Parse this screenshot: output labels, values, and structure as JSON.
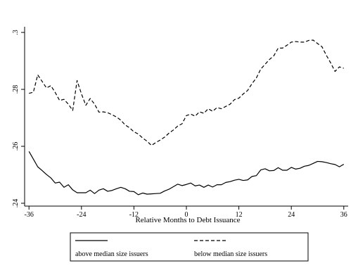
{
  "chart_data": {
    "type": "line",
    "title": "",
    "xlabel": "Relative Months to Debt Issuance",
    "ylabel": "",
    "xlim": [
      -37,
      37
    ],
    "ylim": [
      0.239,
      0.302
    ],
    "grid": false,
    "legend_placement": "bottom",
    "x_ticks": [
      -36,
      -24,
      -12,
      0,
      12,
      24,
      36
    ],
    "x_tick_labels": [
      "-36",
      "-24",
      "-12",
      "0",
      "12",
      "24",
      "36"
    ],
    "y_ticks": [
      0.24,
      0.26,
      0.28,
      0.3
    ],
    "y_tick_labels": [
      ".24",
      ".26",
      ".28",
      ".3"
    ],
    "x": [
      -36,
      -35,
      -34,
      -33,
      -32,
      -31,
      -30,
      -29,
      -28,
      -27,
      -26,
      -25,
      -24,
      -23,
      -22,
      -21,
      -20,
      -19,
      -18,
      -17,
      -16,
      -15,
      -14,
      -13,
      -12,
      -11,
      -10,
      -9,
      -8,
      -7,
      -6,
      -5,
      -4,
      -3,
      -2,
      -1,
      0,
      1,
      2,
      3,
      4,
      5,
      6,
      7,
      8,
      9,
      10,
      11,
      12,
      13,
      14,
      15,
      16,
      17,
      18,
      19,
      20,
      21,
      22,
      23,
      24,
      25,
      26,
      27,
      28,
      29,
      30,
      31,
      32,
      33,
      34,
      35,
      36
    ],
    "series": [
      {
        "name": "above median size issuers",
        "style": "solid",
        "values": [
          0.2582,
          0.2555,
          0.2528,
          0.2515,
          0.2501,
          0.2489,
          0.2471,
          0.2474,
          0.2456,
          0.2465,
          0.2447,
          0.2437,
          0.2437,
          0.2437,
          0.2446,
          0.2434,
          0.2446,
          0.2451,
          0.2442,
          0.2445,
          0.2451,
          0.2456,
          0.2451,
          0.2442,
          0.2441,
          0.243,
          0.2436,
          0.2432,
          0.2433,
          0.2434,
          0.2435,
          0.2443,
          0.2449,
          0.2458,
          0.2467,
          0.2462,
          0.2466,
          0.2471,
          0.2461,
          0.2464,
          0.2456,
          0.2464,
          0.2457,
          0.2465,
          0.2465,
          0.2473,
          0.2476,
          0.2481,
          0.2484,
          0.248,
          0.2482,
          0.2494,
          0.2497,
          0.2517,
          0.2521,
          0.2514,
          0.2515,
          0.2525,
          0.2516,
          0.2516,
          0.2526,
          0.252,
          0.2523,
          0.253,
          0.2533,
          0.254,
          0.2547,
          0.2546,
          0.2543,
          0.2539,
          0.2536,
          0.2528,
          0.2537
        ]
      },
      {
        "name": "below median size issuers",
        "style": "dashed",
        "values": [
          0.2786,
          0.279,
          0.2851,
          0.2828,
          0.2805,
          0.2813,
          0.2789,
          0.2761,
          0.2765,
          0.2748,
          0.2726,
          0.2831,
          0.2784,
          0.2744,
          0.2768,
          0.2748,
          0.272,
          0.2721,
          0.2718,
          0.2711,
          0.2703,
          0.2692,
          0.2675,
          0.2665,
          0.2651,
          0.2643,
          0.2629,
          0.2618,
          0.2603,
          0.2613,
          0.2622,
          0.2632,
          0.2646,
          0.2657,
          0.2671,
          0.2679,
          0.2708,
          0.2713,
          0.2706,
          0.2721,
          0.2716,
          0.2732,
          0.2723,
          0.2736,
          0.2732,
          0.274,
          0.2748,
          0.2764,
          0.2769,
          0.2784,
          0.2796,
          0.282,
          0.284,
          0.2871,
          0.2888,
          0.2905,
          0.2918,
          0.2945,
          0.2945,
          0.2955,
          0.2966,
          0.2968,
          0.2966,
          0.2966,
          0.2972,
          0.2973,
          0.2961,
          0.295,
          0.292,
          0.2893,
          0.2863,
          0.2879,
          0.2874
        ]
      }
    ]
  }
}
